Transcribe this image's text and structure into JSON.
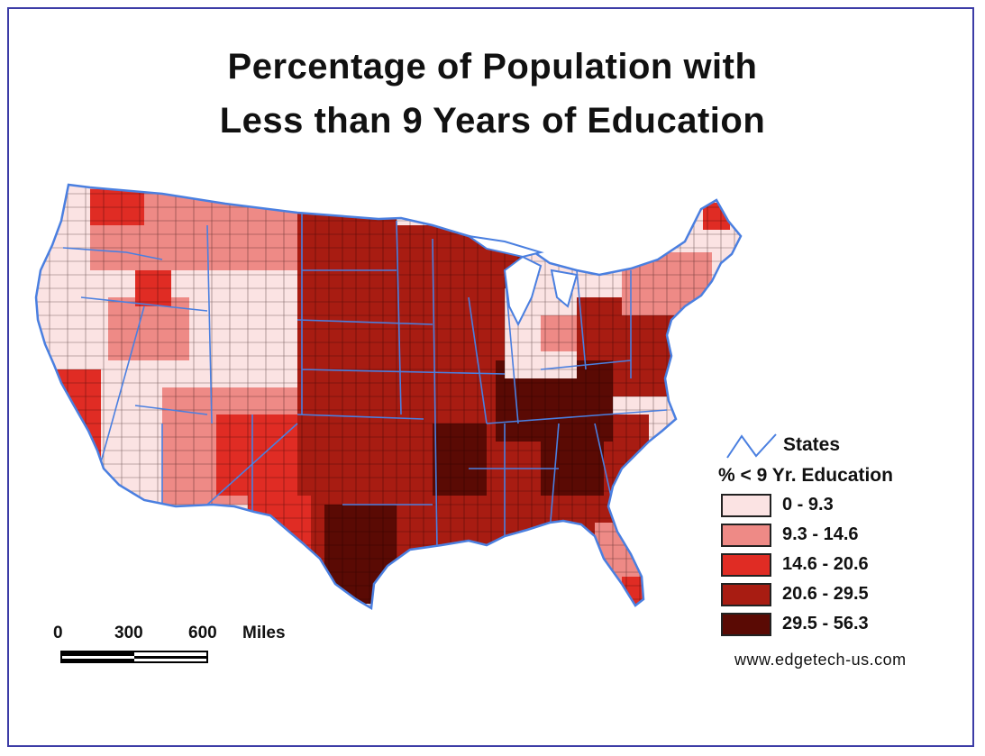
{
  "title": {
    "line1": "Percentage of Population with",
    "line2": "Less than 9 Years of Education"
  },
  "legend": {
    "states_label": "States",
    "heading": "% < 9 Yr. Education",
    "classes": [
      {
        "range": "0 - 9.3",
        "color": "#fbe3e3"
      },
      {
        "range": "9.3 - 14.6",
        "color": "#ee8a86"
      },
      {
        "range": "14.6 - 20.6",
        "color": "#e02c24"
      },
      {
        "range": "20.6 - 29.5",
        "color": "#a81c12"
      },
      {
        "range": "29.5 - 56.3",
        "color": "#5a0a04"
      }
    ],
    "state_line_color": "#4a7fe0"
  },
  "scale_bar": {
    "ticks": [
      "0",
      "300",
      "600"
    ],
    "unit": "Miles"
  },
  "credit": "www.edgetech-us.com",
  "frame_color": "#3c3ca6"
}
